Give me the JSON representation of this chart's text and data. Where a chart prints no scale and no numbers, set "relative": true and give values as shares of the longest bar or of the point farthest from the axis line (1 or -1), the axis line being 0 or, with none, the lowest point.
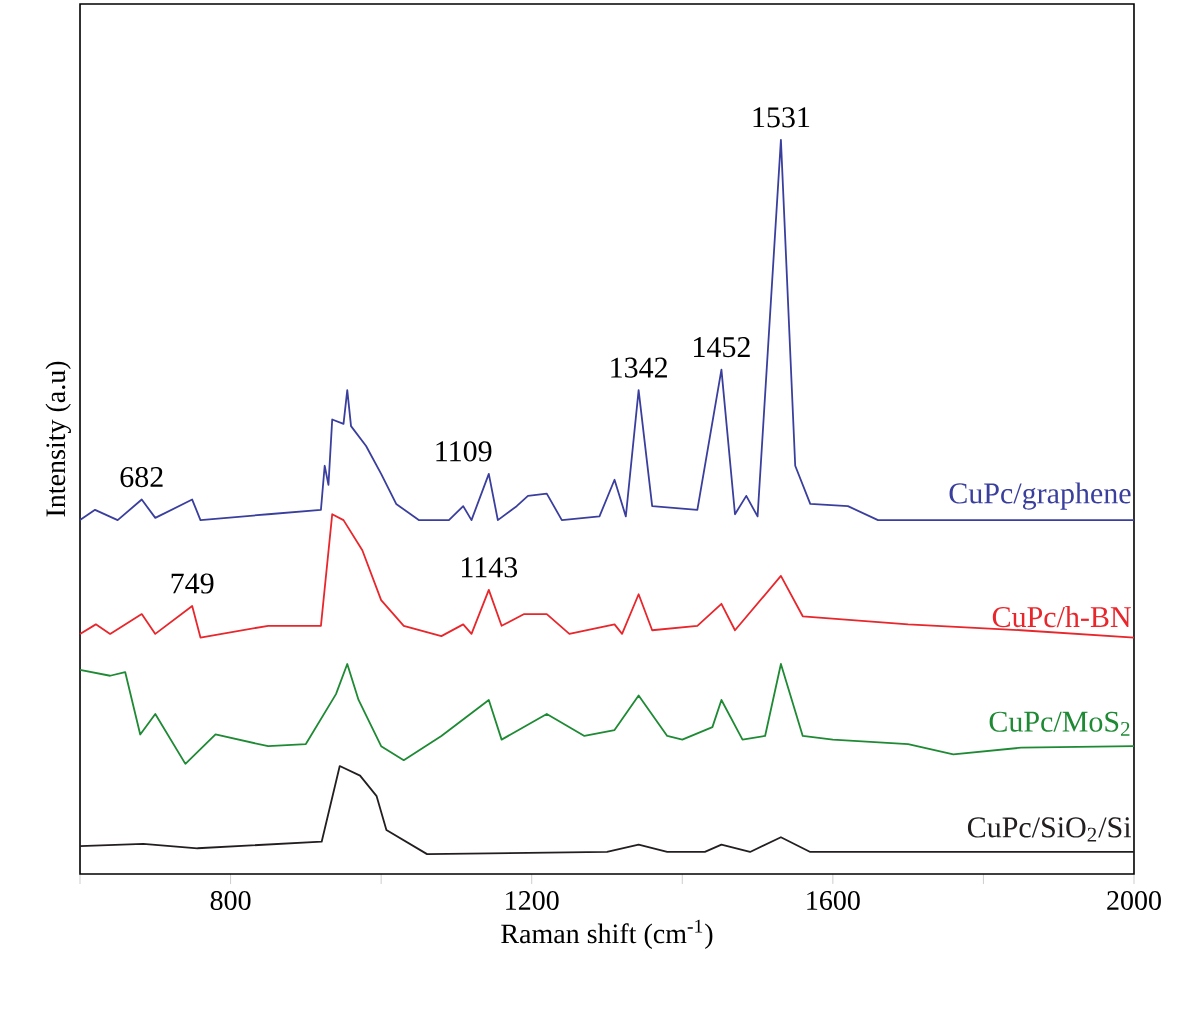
{
  "chart_data": {
    "type": "line",
    "relative": true,
    "xlabel": "Raman shift (cm$^{-1}$)",
    "ylabel": "Intensity (a.u)",
    "xlim": [
      600,
      2000
    ],
    "xticks": [
      {
        "value": 600,
        "label": null
      },
      800,
      {
        "value": 1000,
        "label": null
      },
      1200,
      {
        "value": 1400,
        "label": null
      },
      1600,
      {
        "value": 1800,
        "label": null
      },
      2000
    ],
    "series": [
      {
        "name": "CuPc/graphene",
        "color": "#3a3f9e",
        "x": [
          600,
          620,
          650,
          682,
          700,
          749,
          760,
          850,
          920,
          925,
          930,
          935,
          950,
          955,
          960,
          980,
          1000,
          1020,
          1050,
          1090,
          1109,
          1120,
          1143,
          1155,
          1180,
          1195,
          1220,
          1240,
          1290,
          1310,
          1325,
          1342,
          1360,
          1420,
          1452,
          1470,
          1485,
          1500,
          1531,
          1550,
          1570,
          1620,
          1660,
          2000
        ],
        "values": [
          0.482,
          0.496,
          0.482,
          0.51,
          0.485,
          0.51,
          0.482,
          0.49,
          0.496,
          0.556,
          0.53,
          0.619,
          0.613,
          0.659,
          0.61,
          0.583,
          0.545,
          0.504,
          0.482,
          0.482,
          0.501,
          0.482,
          0.545,
          0.482,
          0.501,
          0.515,
          0.518,
          0.482,
          0.487,
          0.537,
          0.487,
          0.659,
          0.501,
          0.496,
          0.687,
          0.49,
          0.515,
          0.487,
          1.0,
          0.556,
          0.504,
          0.501,
          0.482,
          0.482
        ]
      },
      {
        "name": "CuPc/h-BN",
        "color": "#e8262b",
        "x": [
          600,
          621,
          640,
          682,
          700,
          749,
          760,
          850,
          920,
          935,
          950,
          975,
          1000,
          1030,
          1080,
          1109,
          1120,
          1143,
          1160,
          1190,
          1220,
          1250,
          1310,
          1320,
          1342,
          1360,
          1420,
          1452,
          1470,
          1531,
          1560,
          1700,
          1850,
          2000
        ],
        "values": [
          0.327,
          0.34,
          0.327,
          0.354,
          0.327,
          0.365,
          0.322,
          0.338,
          0.338,
          0.49,
          0.482,
          0.441,
          0.373,
          0.338,
          0.324,
          0.34,
          0.327,
          0.387,
          0.338,
          0.354,
          0.354,
          0.327,
          0.34,
          0.327,
          0.381,
          0.332,
          0.338,
          0.368,
          0.332,
          0.406,
          0.351,
          0.34,
          0.332,
          0.322
        ]
      },
      {
        "name": "CuPc/MoS$_{2}$",
        "color": "#1e8a34",
        "x": [
          600,
          640,
          660,
          680,
          700,
          740,
          780,
          850,
          900,
          940,
          955,
          970,
          1000,
          1030,
          1080,
          1143,
          1160,
          1220,
          1270,
          1310,
          1342,
          1380,
          1400,
          1440,
          1452,
          1480,
          1510,
          1531,
          1560,
          1600,
          1700,
          1760,
          1850,
          2000
        ],
        "values": [
          0.278,
          0.27,
          0.275,
          0.19,
          0.218,
          0.15,
          0.19,
          0.174,
          0.177,
          0.245,
          0.286,
          0.237,
          0.174,
          0.155,
          0.188,
          0.237,
          0.183,
          0.218,
          0.188,
          0.196,
          0.243,
          0.188,
          0.183,
          0.2,
          0.237,
          0.183,
          0.188,
          0.286,
          0.188,
          0.183,
          0.177,
          0.163,
          0.172,
          0.174
        ]
      },
      {
        "name": "CuPc/SiO$_{2}$/Si",
        "color": "#231f20",
        "x": [
          600,
          684,
          756,
          921,
          945,
          972,
          994,
          1007,
          1061,
          1300,
          1342,
          1380,
          1430,
          1452,
          1490,
          1531,
          1570,
          2000
        ],
        "values": [
          0.038,
          0.041,
          0.035,
          0.044,
          0.147,
          0.134,
          0.106,
          0.06,
          0.027,
          0.03,
          0.04,
          0.03,
          0.03,
          0.04,
          0.03,
          0.05,
          0.03,
          0.03
        ]
      }
    ],
    "annotations": [
      {
        "text": "682",
        "x": 682,
        "y": 0.51
      },
      {
        "text": "749",
        "x": 749,
        "y": 0.365
      },
      {
        "text": "1109",
        "x": 1109,
        "y": 0.501
      },
      {
        "text": "1143",
        "x": 1143,
        "y": 0.387
      },
      {
        "text": "1342",
        "x": 1342,
        "y": 0.659
      },
      {
        "text": "1452",
        "x": 1452,
        "y": 0.687
      },
      {
        "text": "1531",
        "x": 1531,
        "y": 1.0
      }
    ]
  }
}
